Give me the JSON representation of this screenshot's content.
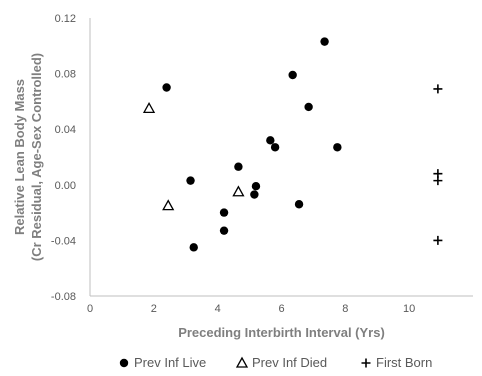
{
  "chart_data": {
    "type": "scatter",
    "xlabel": "Preceding Interbirth Interval (Yrs)",
    "ylabel_lines": [
      "Relative Lean Body Mass",
      "(Cr Residual, Age-Sex Controlled)"
    ],
    "xlim": [
      0,
      12
    ],
    "ylim": [
      -0.08,
      0.12
    ],
    "x_ticks": [
      "0",
      "2",
      "4",
      "6",
      "8",
      "10"
    ],
    "y_ticks": [
      "0.12",
      "0.08",
      "0.04",
      "0.00",
      "-0.04",
      "-0.08"
    ],
    "grid": false,
    "legend_position": "bottom",
    "series": [
      {
        "name": "Prev Inf Live",
        "marker": "circle",
        "color": "#000000",
        "points": [
          {
            "x": 2.4,
            "y": 0.07
          },
          {
            "x": 3.15,
            "y": 0.003
          },
          {
            "x": 3.25,
            "y": -0.045
          },
          {
            "x": 4.2,
            "y": -0.02
          },
          {
            "x": 4.2,
            "y": -0.033
          },
          {
            "x": 4.65,
            "y": 0.013
          },
          {
            "x": 5.15,
            "y": -0.007
          },
          {
            "x": 5.2,
            "y": -0.001
          },
          {
            "x": 5.65,
            "y": 0.032
          },
          {
            "x": 5.8,
            "y": 0.027
          },
          {
            "x": 6.35,
            "y": 0.079
          },
          {
            "x": 6.55,
            "y": -0.014
          },
          {
            "x": 6.85,
            "y": 0.056
          },
          {
            "x": 7.35,
            "y": 0.103
          },
          {
            "x": 7.75,
            "y": 0.027
          }
        ]
      },
      {
        "name": "Prev Inf Died",
        "marker": "triangle",
        "color": "#000000",
        "points": [
          {
            "x": 1.85,
            "y": 0.055
          },
          {
            "x": 2.45,
            "y": -0.015
          },
          {
            "x": 4.65,
            "y": -0.005
          }
        ]
      },
      {
        "name": "First Born",
        "marker": "plus",
        "color": "#000000",
        "points": [
          {
            "x": 10.9,
            "y": 0.069
          },
          {
            "x": 10.9,
            "y": 0.008
          },
          {
            "x": 10.9,
            "y": 0.003
          },
          {
            "x": 10.9,
            "y": -0.04
          }
        ]
      }
    ]
  }
}
